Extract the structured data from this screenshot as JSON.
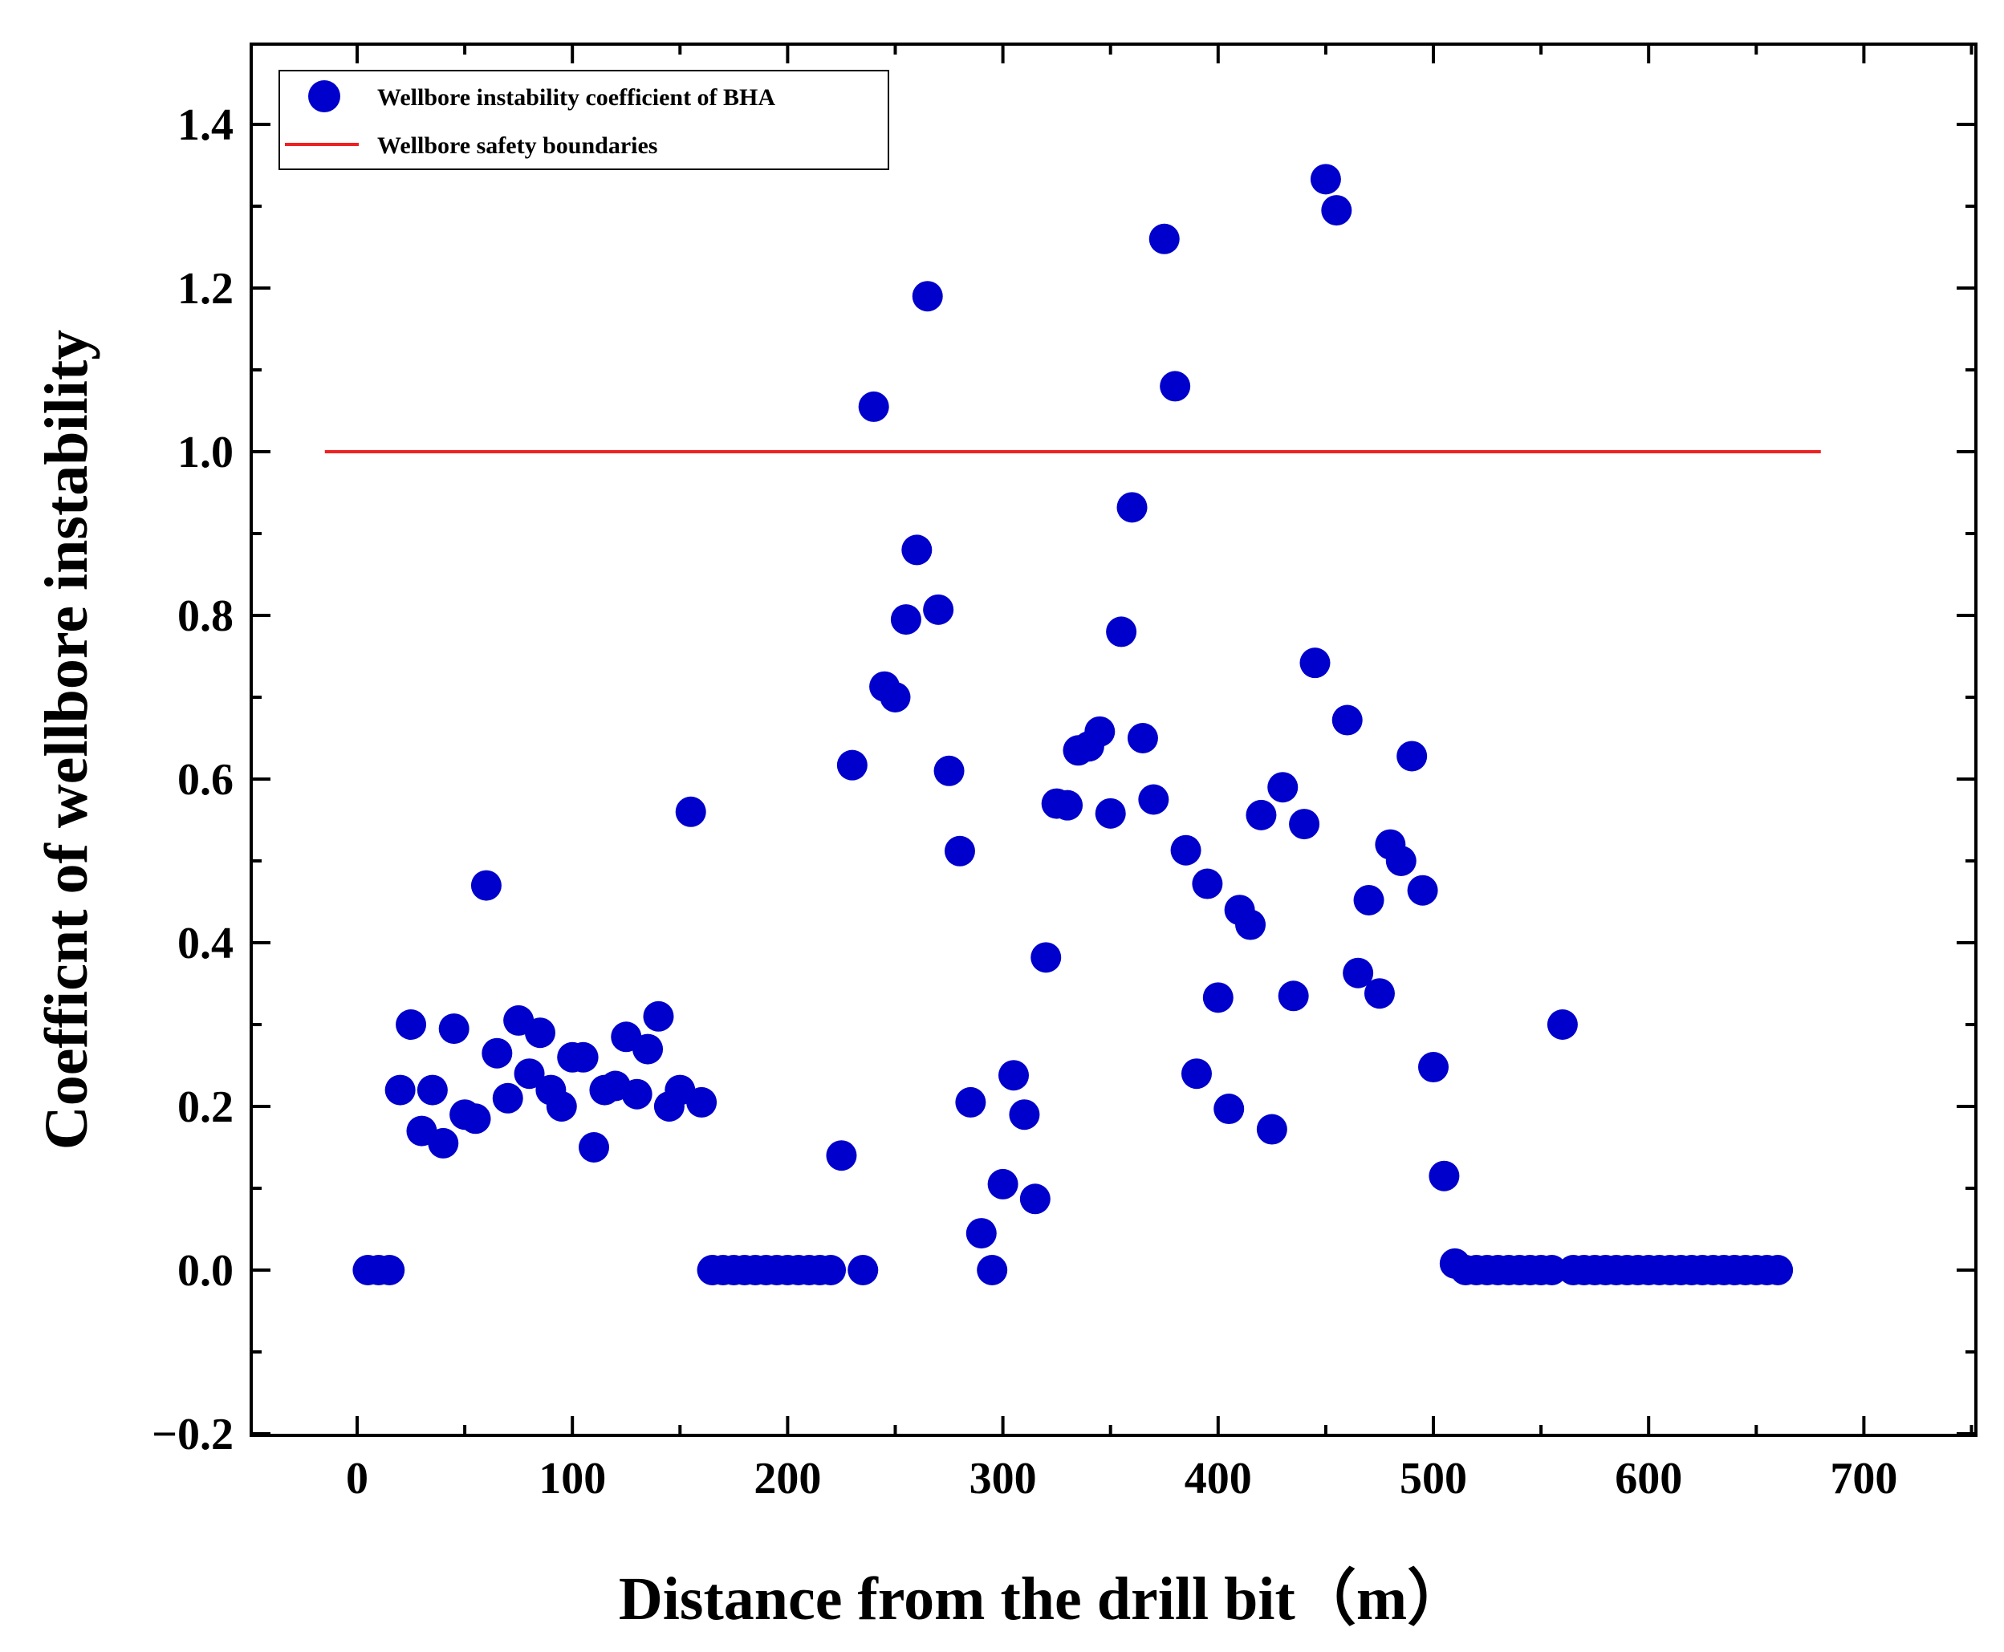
{
  "chart_data": {
    "type": "scatter",
    "xlabel": "Distance from the drill bit（m）",
    "ylabel": "Coefficnt of wellbore instability",
    "xlim": [
      -50,
      750
    ],
    "ylim": [
      -0.2,
      1.5
    ],
    "xticks": [
      0,
      100,
      200,
      300,
      400,
      500,
      600,
      700
    ],
    "yticks": [
      -0.2,
      0.0,
      0.2,
      0.4,
      0.6,
      0.8,
      1.0,
      1.2,
      1.4
    ],
    "xtick_labels": [
      "0",
      "100",
      "200",
      "300",
      "400",
      "500",
      "600",
      "700"
    ],
    "ytick_labels": [
      "−0.2",
      "0.0",
      "0.2",
      "0.4",
      "0.6",
      "0.8",
      "1.0",
      "1.2",
      "1.4"
    ],
    "legend_position": "top-left",
    "series": [
      {
        "name": "Wellbore instability coefficient of BHA",
        "kind": "scatter",
        "color": "#0000cc",
        "points": [
          [
            5,
            0
          ],
          [
            10,
            0
          ],
          [
            15,
            0
          ],
          [
            20,
            0.22
          ],
          [
            25,
            0.3
          ],
          [
            30,
            0.17
          ],
          [
            35,
            0.22
          ],
          [
            40,
            0.155
          ],
          [
            45,
            0.295
          ],
          [
            50,
            0.19
          ],
          [
            55,
            0.185
          ],
          [
            60,
            0.47
          ],
          [
            65,
            0.265
          ],
          [
            70,
            0.21
          ],
          [
            75,
            0.305
          ],
          [
            80,
            0.24
          ],
          [
            85,
            0.29
          ],
          [
            90,
            0.22
          ],
          [
            95,
            0.2
          ],
          [
            100,
            0.26
          ],
          [
            105,
            0.26
          ],
          [
            110,
            0.15
          ],
          [
            115,
            0.22
          ],
          [
            120,
            0.225
          ],
          [
            125,
            0.285
          ],
          [
            130,
            0.215
          ],
          [
            135,
            0.27
          ],
          [
            140,
            0.31
          ],
          [
            145,
            0.2
          ],
          [
            150,
            0.22
          ],
          [
            155,
            0.56
          ],
          [
            160,
            0.205
          ],
          [
            165,
            0
          ],
          [
            170,
            0
          ],
          [
            175,
            0
          ],
          [
            180,
            0
          ],
          [
            185,
            0
          ],
          [
            190,
            0
          ],
          [
            195,
            0
          ],
          [
            200,
            0
          ],
          [
            205,
            0
          ],
          [
            210,
            0
          ],
          [
            215,
            0
          ],
          [
            220,
            0
          ],
          [
            225,
            0.14
          ],
          [
            230,
            0.617
          ],
          [
            235,
            0
          ],
          [
            240,
            1.055
          ],
          [
            245,
            0.713
          ],
          [
            250,
            0.7
          ],
          [
            255,
            0.795
          ],
          [
            260,
            0.88
          ],
          [
            265,
            1.19
          ],
          [
            270,
            0.807
          ],
          [
            275,
            0.61
          ],
          [
            280,
            0.512
          ],
          [
            285,
            0.205
          ],
          [
            290,
            0.045
          ],
          [
            295,
            0
          ],
          [
            300,
            0.105
          ],
          [
            305,
            0.238
          ],
          [
            310,
            0.19
          ],
          [
            315,
            0.087
          ],
          [
            320,
            0.382
          ],
          [
            325,
            0.57
          ],
          [
            330,
            0.568
          ],
          [
            335,
            0.635
          ],
          [
            340,
            0.64
          ],
          [
            345,
            0.658
          ],
          [
            350,
            0.558
          ],
          [
            355,
            0.78
          ],
          [
            360,
            0.932
          ],
          [
            365,
            0.65
          ],
          [
            370,
            0.575
          ],
          [
            375,
            1.26
          ],
          [
            380,
            1.08
          ],
          [
            385,
            0.513
          ],
          [
            390,
            0.24
          ],
          [
            395,
            0.472
          ],
          [
            400,
            0.333
          ],
          [
            405,
            0.197
          ],
          [
            410,
            0.44
          ],
          [
            415,
            0.422
          ],
          [
            420,
            0.556
          ],
          [
            425,
            0.172
          ],
          [
            430,
            0.59
          ],
          [
            435,
            0.335
          ],
          [
            440,
            0.545
          ],
          [
            445,
            0.742
          ],
          [
            450,
            1.333
          ],
          [
            455,
            1.295
          ],
          [
            460,
            0.672
          ],
          [
            465,
            0.363
          ],
          [
            470,
            0.452
          ],
          [
            475,
            0.338
          ],
          [
            480,
            0.52
          ],
          [
            485,
            0.5
          ],
          [
            490,
            0.628
          ],
          [
            495,
            0.464
          ],
          [
            500,
            0.248
          ],
          [
            505,
            0.115
          ],
          [
            510,
            0.008
          ],
          [
            515,
            0
          ],
          [
            520,
            0
          ],
          [
            525,
            0
          ],
          [
            530,
            0
          ],
          [
            535,
            0
          ],
          [
            540,
            0
          ],
          [
            545,
            0
          ],
          [
            550,
            0
          ],
          [
            555,
            0
          ],
          [
            560,
            0.3
          ],
          [
            565,
            0
          ],
          [
            570,
            0
          ],
          [
            575,
            0
          ],
          [
            580,
            0
          ],
          [
            585,
            0
          ],
          [
            590,
            0
          ],
          [
            595,
            0
          ],
          [
            600,
            0
          ],
          [
            605,
            0
          ],
          [
            610,
            0
          ],
          [
            615,
            0
          ],
          [
            620,
            0
          ],
          [
            625,
            0
          ],
          [
            630,
            0
          ],
          [
            635,
            0
          ],
          [
            640,
            0
          ],
          [
            645,
            0
          ],
          [
            650,
            0
          ],
          [
            655,
            0
          ],
          [
            660,
            0
          ]
        ]
      },
      {
        "name": "Wellbore safety boundaries",
        "kind": "line",
        "color": "#ee2222",
        "x": [
          -15,
          680
        ],
        "y": [
          1.0,
          1.0
        ]
      }
    ]
  }
}
